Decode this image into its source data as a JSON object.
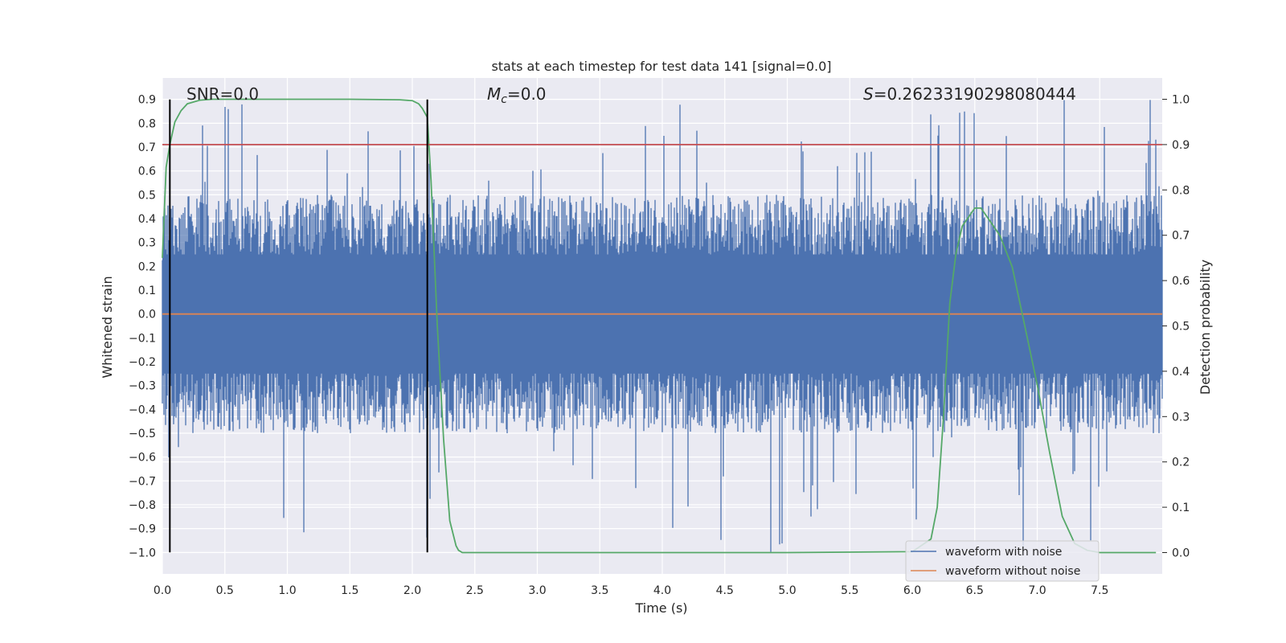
{
  "chart_data": {
    "type": "line",
    "title": "stats at each timestep for test data 141 [signal=0.0]",
    "xlabel": "Time (s)",
    "ylabel_left": "Whitened strain",
    "ylabel_right": "Detection probability",
    "xlim": [
      0.0,
      8.0
    ],
    "ylim_left": [
      -1.09,
      0.99
    ],
    "ylim_right": [
      -0.047,
      1.047
    ],
    "x_ticks": [
      "0.0",
      "0.5",
      "1.0",
      "1.5",
      "2.0",
      "2.5",
      "3.0",
      "3.5",
      "4.0",
      "4.5",
      "5.0",
      "5.5",
      "6.0",
      "6.5",
      "7.0",
      "7.5"
    ],
    "y_ticks_left": [
      "0.9",
      "0.8",
      "0.7",
      "0.6",
      "0.5",
      "0.4",
      "0.3",
      "0.2",
      "0.1",
      "0.0",
      "−0.1",
      "−0.2",
      "−0.3",
      "−0.4",
      "−0.5",
      "−0.6",
      "−0.7",
      "−0.8",
      "−0.9",
      "−1.0"
    ],
    "y_ticks_right": [
      "1.0",
      "0.9",
      "0.8",
      "0.7",
      "0.6",
      "0.5",
      "0.4",
      "0.3",
      "0.2",
      "0.1",
      "0.0"
    ],
    "grid": true,
    "annotations": {
      "snr": "SNR=0.0",
      "mc_symbol": "M",
      "mc_sub": "c",
      "mc_value": "=0.0",
      "s_symbol": "S",
      "s_value": "=0.26233190298080444"
    },
    "vertical_lines_x": [
      0.06,
      2.12
    ],
    "threshold_right": 0.9,
    "series": [
      {
        "name": "waveform with noise",
        "color": "#4c72b0",
        "axis": "left",
        "noise_band": {
          "x_start": 0.0,
          "x_end": 8.0,
          "typical_max": 0.5,
          "typical_min": -0.5,
          "peak_max": 0.9,
          "peak_min": -1.0
        }
      },
      {
        "name": "waveform without noise",
        "color": "#dd8452",
        "axis": "left",
        "x": [
          0.0,
          8.0
        ],
        "y": [
          0.0,
          0.0
        ]
      },
      {
        "color": "#55a868",
        "axis": "right",
        "x": [
          0.0,
          0.03,
          0.06,
          0.1,
          0.15,
          0.2,
          0.3,
          0.4,
          0.6,
          1.0,
          1.5,
          1.9,
          2.0,
          2.05,
          2.08,
          2.12,
          2.15,
          2.2,
          2.25,
          2.3,
          2.35,
          2.37,
          2.4,
          2.5,
          3.0,
          4.0,
          5.0,
          6.0,
          6.15,
          6.2,
          6.25,
          6.3,
          6.35,
          6.4,
          6.5,
          6.55,
          6.6,
          6.7,
          6.8,
          6.9,
          7.0,
          7.1,
          7.2,
          7.3,
          7.4,
          7.5,
          7.95
        ],
        "y": [
          0.65,
          0.85,
          0.9,
          0.95,
          0.975,
          0.99,
          0.998,
          1.0,
          1.0,
          1.0,
          1.0,
          0.999,
          0.997,
          0.99,
          0.98,
          0.96,
          0.82,
          0.5,
          0.25,
          0.07,
          0.015,
          0.005,
          0.0,
          0.0,
          0.0,
          0.0,
          0.0,
          0.002,
          0.03,
          0.1,
          0.3,
          0.55,
          0.66,
          0.72,
          0.76,
          0.76,
          0.74,
          0.7,
          0.63,
          0.5,
          0.37,
          0.22,
          0.08,
          0.02,
          0.005,
          0.0,
          0.0
        ]
      },
      {
        "color": "#c44e52",
        "axis": "right",
        "x": [
          0.0,
          8.0
        ],
        "y": [
          0.9,
          0.9
        ]
      }
    ]
  }
}
